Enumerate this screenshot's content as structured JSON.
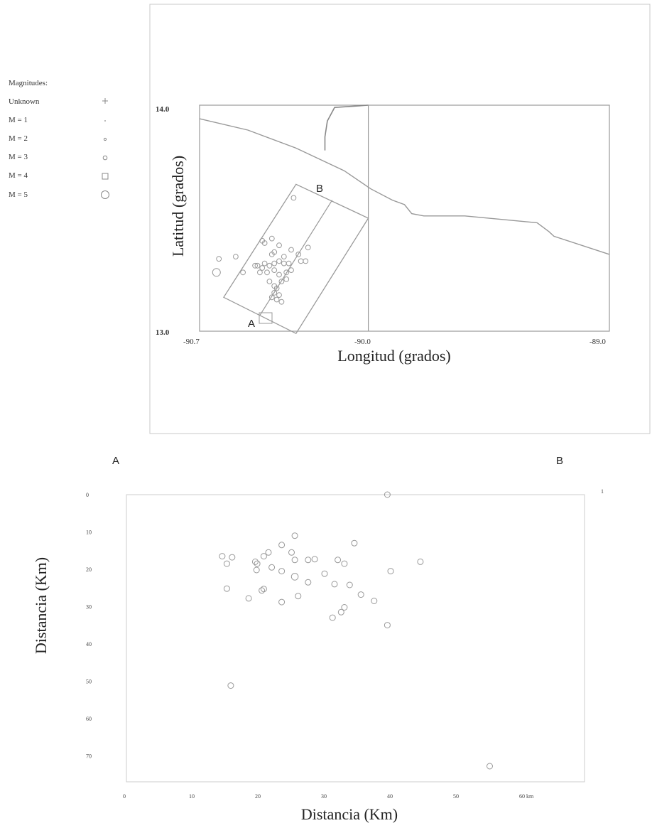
{
  "legend": {
    "title": "Magnitudes:",
    "items": [
      {
        "label": "Unknown",
        "symbol": "cross"
      },
      {
        "label": "M = 1",
        "symbol": "dot"
      },
      {
        "label": "M = 2",
        "symbol": "small-dot"
      },
      {
        "label": "M = 3",
        "symbol": "circle"
      },
      {
        "label": "M = 4",
        "symbol": "square"
      },
      {
        "label": "M = 5",
        "symbol": "large-circle"
      }
    ]
  },
  "chart_data": [
    {
      "type": "scatter",
      "xlabel": "Longitud (grados)",
      "ylabel": "Latitud (grados)",
      "xlim": [
        -90.7,
        -89.0
      ],
      "ylim": [
        13.0,
        14.0
      ],
      "x_ticks": [
        "-90.7",
        "-90.0",
        "-89.0"
      ],
      "x_tick_values": [
        -90.7,
        -90.0,
        -89.0
      ],
      "y_ticks": [
        "13.0",
        "14.0"
      ],
      "y_tick_values": [
        13.0,
        14.0
      ],
      "profile_labels": {
        "start": "A",
        "end": "B"
      },
      "profile_box": [
        [
          -90.6,
          13.15
        ],
        [
          -90.3,
          13.65
        ],
        [
          -90.0,
          13.5
        ],
        [
          -90.3,
          12.99
        ]
      ],
      "profile_line": [
        [
          -90.45,
          13.07
        ],
        [
          -90.15,
          13.58
        ]
      ],
      "coastline": [
        [
          -90.7,
          13.94
        ],
        [
          -90.5,
          13.89
        ],
        [
          -90.3,
          13.81
        ],
        [
          -90.1,
          13.71
        ],
        [
          -89.99,
          13.63
        ],
        [
          -89.9,
          13.58
        ],
        [
          -89.85,
          13.56
        ],
        [
          -89.82,
          13.52
        ],
        [
          -89.77,
          13.51
        ],
        [
          -89.6,
          13.51
        ],
        [
          -89.3,
          13.48
        ],
        [
          -89.25,
          13.44
        ],
        [
          -89.23,
          13.42
        ],
        [
          -89.0,
          13.34
        ]
      ],
      "border_line": [
        [
          -90.0,
          14.0
        ],
        [
          -90.14,
          13.99
        ],
        [
          -90.17,
          13.93
        ],
        [
          -90.18,
          13.86
        ],
        [
          -90.18,
          13.8
        ]
      ],
      "meridian_x": -90.0,
      "events": [
        {
          "x": -90.31,
          "y": 13.59,
          "m": 3
        },
        {
          "x": -90.4,
          "y": 13.41,
          "m": 3
        },
        {
          "x": -90.25,
          "y": 13.37,
          "m": 3
        },
        {
          "x": -90.29,
          "y": 13.34,
          "m": 3
        },
        {
          "x": -90.32,
          "y": 13.36,
          "m": 3
        },
        {
          "x": -90.35,
          "y": 13.33,
          "m": 3
        },
        {
          "x": -90.37,
          "y": 13.31,
          "m": 3
        },
        {
          "x": -90.33,
          "y": 13.3,
          "m": 3
        },
        {
          "x": -90.28,
          "y": 13.31,
          "m": 3
        },
        {
          "x": -90.26,
          "y": 13.31,
          "m": 3
        },
        {
          "x": -90.39,
          "y": 13.3,
          "m": 3
        },
        {
          "x": -90.35,
          "y": 13.3,
          "m": 3
        },
        {
          "x": -90.41,
          "y": 13.29,
          "m": 3
        },
        {
          "x": -90.43,
          "y": 13.3,
          "m": 3
        },
        {
          "x": -90.44,
          "y": 13.28,
          "m": 3
        },
        {
          "x": -90.46,
          "y": 13.29,
          "m": 3
        },
        {
          "x": -90.39,
          "y": 13.27,
          "m": 3
        },
        {
          "x": -90.34,
          "y": 13.26,
          "m": 3
        },
        {
          "x": -90.32,
          "y": 13.27,
          "m": 3
        },
        {
          "x": -90.42,
          "y": 13.26,
          "m": 3
        },
        {
          "x": -90.45,
          "y": 13.26,
          "m": 3
        },
        {
          "x": -90.37,
          "y": 13.25,
          "m": 3
        },
        {
          "x": -90.34,
          "y": 13.23,
          "m": 3
        },
        {
          "x": -90.41,
          "y": 13.22,
          "m": 3
        },
        {
          "x": -90.36,
          "y": 13.22,
          "m": 3
        },
        {
          "x": -90.39,
          "y": 13.2,
          "m": 3
        },
        {
          "x": -90.38,
          "y": 13.19,
          "m": 3
        },
        {
          "x": -90.39,
          "y": 13.17,
          "m": 3
        },
        {
          "x": -90.37,
          "y": 13.16,
          "m": 3
        },
        {
          "x": -90.4,
          "y": 13.15,
          "m": 3
        },
        {
          "x": -90.38,
          "y": 13.14,
          "m": 3
        },
        {
          "x": -90.36,
          "y": 13.13,
          "m": 3
        },
        {
          "x": -90.47,
          "y": 13.29,
          "m": 3
        },
        {
          "x": -90.52,
          "y": 13.26,
          "m": 3
        },
        {
          "x": -90.55,
          "y": 13.33,
          "m": 3
        },
        {
          "x": -90.43,
          "y": 13.39,
          "m": 3
        },
        {
          "x": -90.44,
          "y": 13.4,
          "m": 3
        },
        {
          "x": -90.4,
          "y": 13.34,
          "m": 3
        },
        {
          "x": -90.39,
          "y": 13.35,
          "m": 3
        },
        {
          "x": -90.37,
          "y": 13.38,
          "m": 3
        },
        {
          "x": -90.63,
          "y": 13.26,
          "m": 5
        },
        {
          "x": -90.62,
          "y": 13.32,
          "m": 3
        }
      ]
    },
    {
      "type": "scatter",
      "xlabel": "Distancia (Km)",
      "ylabel": "Distancia (Km)",
      "xlim": [
        0,
        70
      ],
      "ylim": [
        0,
        77
      ],
      "y_inverted": true,
      "x_ticks": [
        "0",
        "10",
        "20",
        "30",
        "40",
        "50",
        "60 km"
      ],
      "x_tick_values": [
        0,
        10,
        20,
        30,
        40,
        50,
        60
      ],
      "y_ticks": [
        "0",
        "10",
        "20",
        "30",
        "40",
        "50",
        "60",
        "70"
      ],
      "y_tick_values": [
        0,
        10,
        20,
        30,
        40,
        50,
        60,
        70
      ],
      "profile_labels": {
        "start": "A",
        "end": "B"
      },
      "corner_mark": "1",
      "events": [
        {
          "x": 39.5,
          "y": 0,
          "m": 3
        },
        {
          "x": 25.5,
          "y": 11,
          "m": 3
        },
        {
          "x": 34.5,
          "y": 13,
          "m": 3
        },
        {
          "x": 23.5,
          "y": 13.5,
          "m": 3
        },
        {
          "x": 14.5,
          "y": 16.5,
          "m": 3
        },
        {
          "x": 16,
          "y": 16.8,
          "m": 3
        },
        {
          "x": 15.2,
          "y": 18.5,
          "m": 3
        },
        {
          "x": 21.5,
          "y": 15.5,
          "m": 3
        },
        {
          "x": 25,
          "y": 15.5,
          "m": 3
        },
        {
          "x": 20.8,
          "y": 16.5,
          "m": 3
        },
        {
          "x": 19.5,
          "y": 18,
          "m": 3
        },
        {
          "x": 19.8,
          "y": 18.5,
          "m": 3
        },
        {
          "x": 22,
          "y": 19.5,
          "m": 3
        },
        {
          "x": 19.7,
          "y": 20.2,
          "m": 3
        },
        {
          "x": 23.5,
          "y": 20.5,
          "m": 3
        },
        {
          "x": 25.5,
          "y": 17.5,
          "m": 3
        },
        {
          "x": 28.5,
          "y": 17.3,
          "m": 3
        },
        {
          "x": 27.5,
          "y": 17.5,
          "m": 3
        },
        {
          "x": 32,
          "y": 17.5,
          "m": 3
        },
        {
          "x": 33,
          "y": 18.5,
          "m": 3
        },
        {
          "x": 30,
          "y": 21.2,
          "m": 3
        },
        {
          "x": 25.5,
          "y": 22,
          "m": 4
        },
        {
          "x": 27.5,
          "y": 23.5,
          "m": 3
        },
        {
          "x": 31.5,
          "y": 24,
          "m": 3
        },
        {
          "x": 33.8,
          "y": 24.2,
          "m": 3
        },
        {
          "x": 40,
          "y": 20.5,
          "m": 3
        },
        {
          "x": 44.5,
          "y": 18,
          "m": 3
        },
        {
          "x": 15.2,
          "y": 25.2,
          "m": 3
        },
        {
          "x": 20.8,
          "y": 25.3,
          "m": 3
        },
        {
          "x": 20.5,
          "y": 25.7,
          "m": 3
        },
        {
          "x": 26,
          "y": 27.2,
          "m": 3
        },
        {
          "x": 35.5,
          "y": 26.8,
          "m": 3
        },
        {
          "x": 18.5,
          "y": 27.8,
          "m": 3
        },
        {
          "x": 23.5,
          "y": 28.8,
          "m": 3
        },
        {
          "x": 37.5,
          "y": 28.5,
          "m": 3
        },
        {
          "x": 33,
          "y": 30.2,
          "m": 3
        },
        {
          "x": 32.5,
          "y": 31.5,
          "m": 3
        },
        {
          "x": 31.2,
          "y": 33,
          "m": 3
        },
        {
          "x": 39.5,
          "y": 35,
          "m": 3
        },
        {
          "x": 15.8,
          "y": 51.2,
          "m": 3
        },
        {
          "x": 55,
          "y": 72.8,
          "m": 3
        }
      ]
    }
  ]
}
